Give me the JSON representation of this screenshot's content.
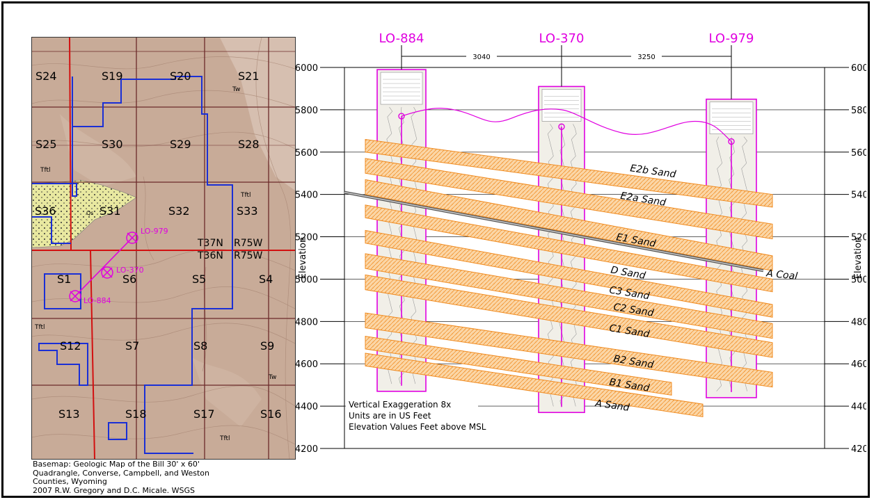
{
  "map": {
    "sections": [
      "S24",
      "S19",
      "S20",
      "S21",
      "S25",
      "S30",
      "S29",
      "S28",
      "S36",
      "S31",
      "S32",
      "S33",
      "S1",
      "S6",
      "S5",
      "S4",
      "S12",
      "S7",
      "S8",
      "S9",
      "S13",
      "S18",
      "S17",
      "S16"
    ],
    "township_north": "T37N",
    "range_north": "R75W",
    "township_south": "T36N",
    "range_south": "R75W",
    "geology_labels": [
      "Tw",
      "Tftl",
      "Tftl",
      "Qs",
      "Tftl",
      "Tw",
      "Tftl"
    ],
    "wells": [
      "LO-979",
      "LO-370",
      "LO-884"
    ],
    "colors": {
      "basemap": "#c8ab98",
      "alluvium": "#e8e8a0",
      "lease_boundary": "#1a2fd6",
      "township_line": "#d21010",
      "section_line": "#6b2a2a",
      "well": "#e000e0"
    }
  },
  "caption": {
    "lines": [
      "Basemap: Geologic Map of the Bill 30' x 60'",
      "Quadrangle, Converse, Campbell, and Weston",
      "Counties, Wyoming",
      "2007   R.W. Gregory and D.C. Micale.   WSGS"
    ]
  },
  "cross_section": {
    "wells": [
      {
        "name": "LO-884",
        "surface_elev": 5770,
        "log_top": 5990,
        "log_bottom": 4470
      },
      {
        "name": "LO-370",
        "surface_elev": 5720,
        "log_top": 5910,
        "log_bottom": 4370
      },
      {
        "name": "LO-979",
        "surface_elev": 5650,
        "log_top": 5850,
        "log_bottom": 4440
      }
    ],
    "spacings": [
      "3040",
      "3250"
    ],
    "axis": {
      "label": "Elevation",
      "min": 4200,
      "max": 6000,
      "ticks": [
        "6000",
        "5800",
        "5600",
        "5400",
        "5200",
        "5000",
        "4800",
        "4600",
        "4400",
        "4200"
      ]
    },
    "sands": [
      "E2b Sand",
      "E2a Sand",
      "E1 Sand",
      "D Sand",
      "C3 Sand",
      "C2 Sand",
      "C1 Sand",
      "B2 Sand",
      "B1 Sand",
      "A Sand"
    ],
    "coal": "A Coal",
    "notes": [
      "Vertical Exaggeration 8x",
      "Units are in US Feet",
      "Elevation Values Feet above MSL"
    ],
    "colors": {
      "sand_fill": "#fbd6a6",
      "sand_stroke": "#f08a1e",
      "well": "#e000e0",
      "coal": "#555555"
    }
  }
}
